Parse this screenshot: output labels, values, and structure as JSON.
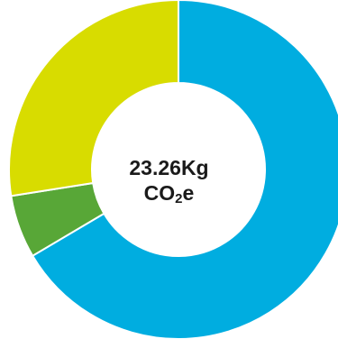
{
  "chart_data": {
    "type": "pie",
    "categories": [
      "",
      "",
      ""
    ],
    "values": [
      66.5,
      6.0,
      27.5
    ],
    "colors": [
      "#00ADE0",
      "#58A737",
      "#D8DC00"
    ],
    "title": "",
    "xlabel": "",
    "ylabel": "",
    "center_label": {
      "value": "23.26Kg",
      "unit_main": "CO",
      "unit_sub": "2",
      "unit_tail": "e"
    }
  }
}
